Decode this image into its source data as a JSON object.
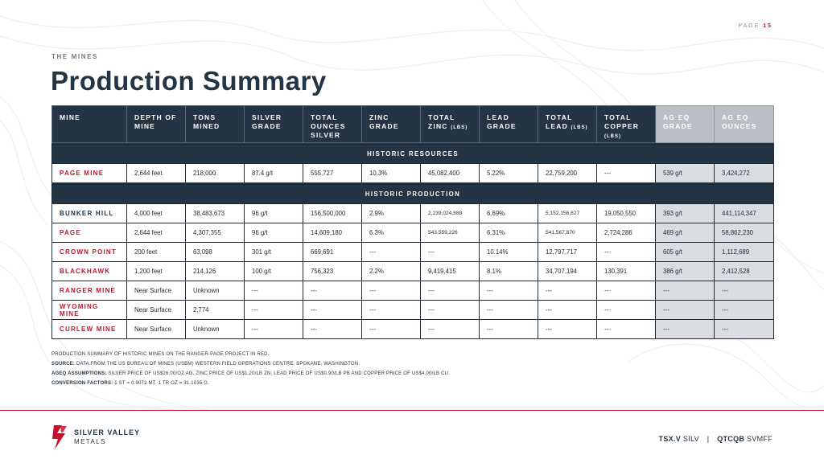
{
  "page": {
    "label": "PAGE",
    "number": "15"
  },
  "section_label": "THE MINES",
  "title": "Production Summary",
  "table": {
    "headers": [
      {
        "line1": "MINE"
      },
      {
        "line1": "DEPTH OF",
        "line2": "MINE"
      },
      {
        "line1": "TONS",
        "line2": "MINED"
      },
      {
        "line1": "SILVER",
        "line2": "GRADE"
      },
      {
        "line1": "TOTAL",
        "line2": "OUNCES",
        "line3": "SILVER"
      },
      {
        "line1": "ZINC",
        "line2": "GRADE"
      },
      {
        "line1": "TOTAL",
        "line2": "ZINC",
        "unit": "(LBS)"
      },
      {
        "line1": "LEAD",
        "line2": "GRADE"
      },
      {
        "line1": "TOTAL",
        "line2": "LEAD",
        "unit": "(LBS)"
      },
      {
        "line1": "TOTAL",
        "line2": "COPPER",
        "unit": "(LBS)"
      },
      {
        "line1": "AG EQ",
        "line2": "GRADE"
      },
      {
        "line1": "AG EQ",
        "line2": "OUNCES"
      }
    ],
    "historic_resources_label": "HISTORIC RESOURCES",
    "resources": [
      [
        "PAGE MINE",
        "2,644 feet",
        "218,000",
        "87.4 g/t",
        "555,727",
        "10.3%",
        "45,082,400",
        "5.22%",
        "22,759,200",
        "---",
        "539 g/t",
        "3,424,272"
      ]
    ],
    "historic_production_label": "HISTORIC PRODUCTION",
    "production": [
      [
        "BUNKER HILL",
        "4,000 feet",
        "38,483,673",
        "96 g/t",
        "156,500,000",
        "2.9%",
        "2,239,024,888",
        "6.69%",
        "5,152,156,627",
        "19,050,550",
        "393 g/t",
        "441,114,347"
      ],
      [
        "PAGE",
        "2,644 feet",
        "4,307,355",
        "96 g/t",
        "14,609,180",
        "6.3%",
        "543,559,226",
        "6.31%",
        "541,567,870",
        "2,724,286",
        "469 g/t",
        "58,862,230"
      ],
      [
        "CROWN POINT",
        "200 feet",
        "63,098",
        "301 g/t",
        "669,691",
        "---",
        "---",
        "10.14%",
        "12,797,717",
        "---",
        "605 g/t",
        "1,112,689"
      ],
      [
        "BLACKHAWK",
        "1,200 feet",
        "214,126",
        "100 g/t",
        "756,323",
        "2.2%",
        "9,419,415",
        "8.1%",
        "34,707,194",
        "130,391",
        "386 g/t",
        "2,412,528"
      ],
      [
        "RANGER MINE",
        "Near Surface",
        "Unknown",
        "---",
        "---",
        "---",
        "---",
        "---",
        "---",
        "---",
        "---",
        "---"
      ],
      [
        "WYOMING MINE",
        "Near Surface",
        "2,774",
        "---",
        "---",
        "---",
        "---",
        "---",
        "---",
        "---",
        "---",
        "---"
      ],
      [
        "CURLEW MINE",
        "Near Surface",
        "Unknown",
        "---",
        "---",
        "---",
        "---",
        "---",
        "---",
        "---",
        "---",
        "---"
      ]
    ]
  },
  "notes": {
    "line1": "PRODUCTION SUMMARY OF HISTORIC MINES ON THE RANGER-PAGE PROJECT IN RED.",
    "source_label": "SOURCE:",
    "source_text": "DATA FROM THE US BUREAU OF MINES (USBM) WESTERN FIELD OPERATIONS CENTRE, SPOKANE, WASHINGTON.",
    "ageq_label": "AGEQ ASSUMPTIONS:",
    "ageq_text": "SILVER PRICE OF US$26.00/OZ AG, ZINC PRICE OF US$1.20/LB ZN, LEAD PRICE OF US$0.90/LB PB AND COPPER PRICE OF US$4.00/LB CU.",
    "conv_label": "CONVERSION FACTORS:",
    "conv_text": "1 ST = 0.9072 MT. 1 TR OZ = 31.1035 G."
  },
  "footer": {
    "logo_line1": "SILVER VALLEY",
    "logo_line2": "METALS",
    "ticker1_exchange": "TSX.V",
    "ticker1_symbol": "SILV",
    "separator": "|",
    "ticker2_exchange": "QTCQB",
    "ticker2_symbol": "SVMFF"
  },
  "colors": {
    "navy": "#233444",
    "red": "#c8102e",
    "eq_header": "#b9bfc5",
    "eq_cell": "#d9dde1"
  },
  "red_mines": [
    "PAGE MINE",
    "PAGE",
    "CROWN POINT",
    "BLACKHAWK",
    "RANGER MINE",
    "WYOMING MINE",
    "CURLEW MINE"
  ]
}
